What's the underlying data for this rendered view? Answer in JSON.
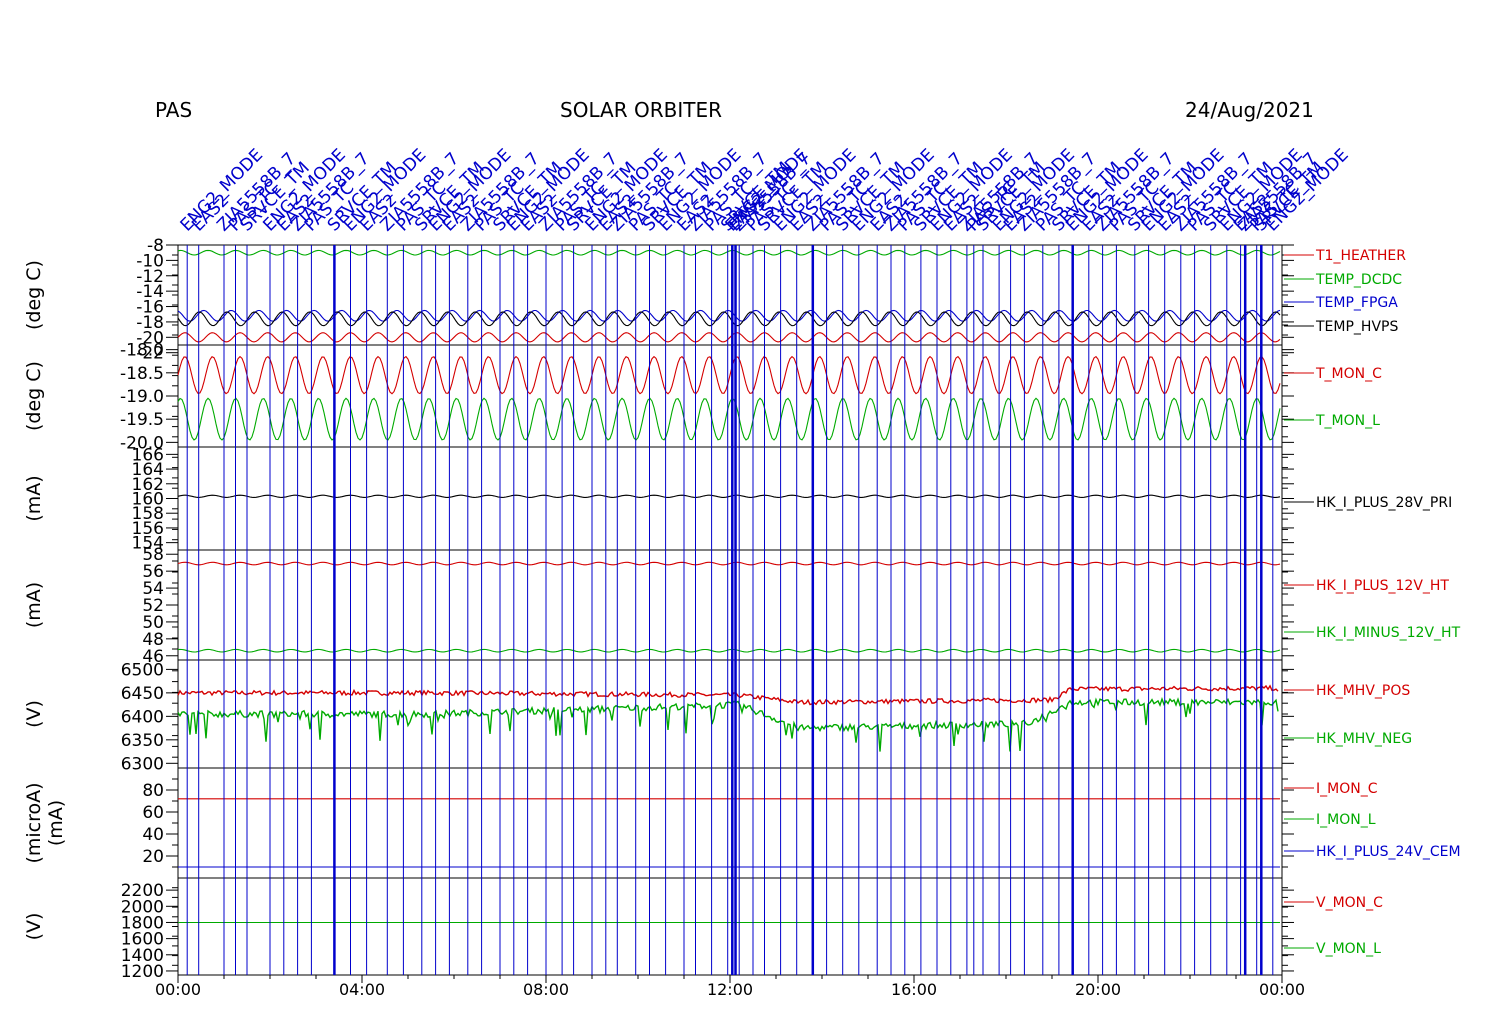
{
  "header": {
    "instrument": "PAS",
    "mission": "SOLAR ORBITER",
    "date": "24/Aug/2021",
    "event_labels": [
      "ENG2_MODE",
      "EAS2",
      "ZIA5558B_7",
      "PAS_TC",
      "SRVCE_TM"
    ]
  },
  "colors": {
    "red": "#d40000",
    "green": "#00aa00",
    "blue": "#0000cc",
    "black": "#000000"
  },
  "x_axis": {
    "ticks": [
      "00:00",
      "04:00",
      "08:00",
      "12:00",
      "16:00",
      "20:00",
      "00:00"
    ],
    "range_hours": [
      0,
      24
    ]
  },
  "event_times_hours": [
    0.2,
    0.45,
    1.0,
    1.25,
    1.5,
    2.0,
    2.3,
    2.6,
    2.9,
    3.4,
    3.75,
    4.1,
    4.55,
    4.9,
    5.3,
    5.6,
    5.9,
    6.3,
    6.6,
    7.0,
    7.3,
    7.6,
    8.0,
    8.35,
    8.6,
    9.0,
    9.3,
    9.55,
    9.95,
    10.25,
    10.6,
    11.0,
    11.25,
    11.6,
    11.95,
    12.05,
    12.12,
    12.2,
    12.5,
    12.75,
    13.1,
    13.45,
    13.8,
    14.1,
    14.45,
    14.8,
    15.2,
    15.5,
    15.8,
    16.15,
    16.5,
    16.8,
    17.15,
    17.3,
    17.5,
    17.85,
    18.1,
    18.4,
    18.8,
    19.15,
    19.45,
    19.8,
    20.1,
    20.4,
    20.8,
    21.1,
    21.45,
    21.8,
    22.1,
    22.45,
    22.8,
    23.1,
    23.2,
    23.45,
    23.55,
    23.8
  ],
  "event_times_bold_hours": [
    3.4,
    12.05,
    12.12,
    13.8,
    19.45,
    23.2,
    23.55
  ],
  "chart_data": [
    {
      "type": "line",
      "ylabel": "(deg C)",
      "ylim": [
        -21,
        -8
      ],
      "yticks": [
        "-8",
        "-10",
        "-12",
        "-14",
        "-16",
        "-18",
        "-20",
        "-22"
      ],
      "series": [
        {
          "name": "T1_HEATHER",
          "color": "#d40000",
          "mean": -20.0,
          "amp": 0.6
        },
        {
          "name": "TEMP_DCDC",
          "color": "#00aa00",
          "mean": -9.0,
          "amp": 0.3
        },
        {
          "name": "TEMP_FPGA",
          "color": "#0000cc",
          "mean": -17.2,
          "amp": 0.7
        },
        {
          "name": "TEMP_HVPS",
          "color": "#000000",
          "mean": -17.6,
          "amp": 0.9
        }
      ]
    },
    {
      "type": "line",
      "ylabel": "(deg C)",
      "ylim": [
        -20.1,
        -17.9
      ],
      "yticks": [
        "-18.0",
        "-18.5",
        "-19.0",
        "-19.5",
        "-20.0"
      ],
      "series": [
        {
          "name": "T_MON_C",
          "color": "#d40000",
          "mean": -18.55,
          "amp": 0.4
        },
        {
          "name": "T_MON_L",
          "color": "#00aa00",
          "mean": -19.5,
          "amp": 0.45
        }
      ]
    },
    {
      "type": "line",
      "ylabel": "(mA)",
      "ylim": [
        153,
        167
      ],
      "yticks": [
        "166",
        "164",
        "162",
        "160",
        "158",
        "156",
        "154"
      ],
      "series": [
        {
          "name": "HK_I_PLUS_28V_PRI",
          "color": "#000000",
          "mean": 160.3,
          "amp": 0.15
        }
      ]
    },
    {
      "type": "line",
      "ylabel": "(mA)",
      "ylim": [
        45.5,
        58.5
      ],
      "yticks": [
        "58",
        "56",
        "54",
        "52",
        "50",
        "48",
        "46"
      ],
      "series": [
        {
          "name": "HK_I_PLUS_12V_HT",
          "color": "#d40000",
          "mean": 56.9,
          "amp": 0.15
        },
        {
          "name": "HK_I_MINUS_12V_HT",
          "color": "#00aa00",
          "mean": 46.6,
          "amp": 0.15
        }
      ]
    },
    {
      "type": "line",
      "ylabel": "(V)",
      "ylim": [
        6290,
        6520
      ],
      "yticks": [
        "6500",
        "6450",
        "6400",
        "6350",
        "6300"
      ],
      "series": [
        {
          "name": "HK_MHV_POS",
          "color": "#d40000",
          "segments": [
            [
              0,
              6450
            ],
            [
              5.5,
              6450
            ],
            [
              12.2,
              6445
            ],
            [
              13.5,
              6430
            ],
            [
              19.0,
              6435
            ],
            [
              19.4,
              6458
            ],
            [
              23.9,
              6460
            ]
          ]
        },
        {
          "name": "HK_MHV_NEG",
          "color": "#00aa00",
          "segments": [
            [
              0,
              6405
            ],
            [
              5.5,
              6405
            ],
            [
              12.2,
              6425
            ],
            [
              13.5,
              6375
            ],
            [
              18.5,
              6385
            ],
            [
              19.4,
              6430
            ],
            [
              23.9,
              6430
            ]
          ]
        }
      ]
    },
    {
      "type": "line",
      "ylabel": "(microA)",
      "ylabel2": "(mA)",
      "ylim": [
        0,
        100
      ],
      "yticks": [
        "80",
        "60",
        "40",
        "20"
      ],
      "series": [
        {
          "name": "I_MON_C",
          "color": "#d40000",
          "mean": 72,
          "amp": 0
        },
        {
          "name": "I_MON_L",
          "color": "#00aa00",
          "mean": null,
          "amp": 0
        },
        {
          "name": "HK_I_PLUS_24V_CEM",
          "color": "#0000cc",
          "mean": 10,
          "amp": 0
        }
      ]
    },
    {
      "type": "line",
      "ylabel": "(V)",
      "ylim": [
        1150,
        2350
      ],
      "yticks": [
        "2200",
        "2000",
        "1800",
        "1600",
        "1400",
        "1200"
      ],
      "series": [
        {
          "name": "V_MON_C",
          "color": "#d40000",
          "mean": null,
          "amp": 0
        },
        {
          "name": "V_MON_L",
          "color": "#00aa00",
          "mean": 1800,
          "amp": 0
        }
      ]
    }
  ]
}
